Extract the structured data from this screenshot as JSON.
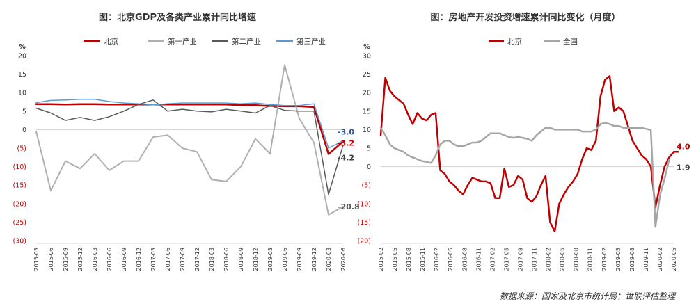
{
  "chart_data": [
    {
      "type": "line",
      "title": "图：北京GDP及各类产业累计同比增速",
      "ylabel": "%",
      "ylim": [
        -30,
        20
      ],
      "yticks": [
        20,
        15,
        10,
        5,
        0,
        -5,
        -10,
        -15,
        -20,
        -25,
        -30
      ],
      "ytick_labels": [
        "20",
        "15",
        "10",
        "5",
        "0",
        "(5)",
        "(10)",
        "(15)",
        "(20)",
        "(25)",
        "(30)"
      ],
      "x_start": "2015-03",
      "x_end": "2020-06",
      "xtick_labels": [
        "2015-03",
        "2015-06",
        "2015-09",
        "2015-12",
        "2016-03",
        "2016-06",
        "2016-09",
        "2016-12",
        "2017-03",
        "2017-06",
        "2017-09",
        "2017-12",
        "2018-03",
        "2018-06",
        "2018-09",
        "2018-12",
        "2019-03",
        "2019-06",
        "2019-09",
        "2019-12",
        "2020-03",
        "2020-06"
      ],
      "legend_position": "top",
      "series": [
        {
          "name": "北京",
          "color": "#c00000",
          "width": 2.5,
          "points": [
            [
              0,
              6.9
            ],
            [
              3,
              6.9
            ],
            [
              6,
              6.8
            ],
            [
              9,
              6.9
            ],
            [
              12,
              6.9
            ],
            [
              15,
              6.8
            ],
            [
              18,
              6.8
            ],
            [
              21,
              6.8
            ],
            [
              24,
              6.8
            ],
            [
              27,
              6.8
            ],
            [
              30,
              6.8
            ],
            [
              33,
              6.8
            ],
            [
              36,
              6.8
            ],
            [
              39,
              6.8
            ],
            [
              42,
              6.6
            ],
            [
              45,
              6.6
            ],
            [
              48,
              6.4
            ],
            [
              51,
              6.3
            ],
            [
              54,
              6.3
            ],
            [
              57,
              6.1
            ],
            [
              60,
              -6.6
            ],
            [
              63,
              -3.2
            ]
          ]
        },
        {
          "name": "第一产业",
          "color": "#b0b0b0",
          "width": 2,
          "points": [
            [
              0,
              -0.5
            ],
            [
              3,
              -16.5
            ],
            [
              6,
              -8.5
            ],
            [
              9,
              -10.5
            ],
            [
              12,
              -6.5
            ],
            [
              15,
              -11
            ],
            [
              18,
              -8.5
            ],
            [
              21,
              -8.5
            ],
            [
              24,
              -2
            ],
            [
              27,
              -1.5
            ],
            [
              30,
              -5
            ],
            [
              33,
              -6
            ],
            [
              36,
              -13.5
            ],
            [
              39,
              -14
            ],
            [
              42,
              -10
            ],
            [
              45,
              -2.5
            ],
            [
              48,
              -6.5
            ],
            [
              51,
              17.5
            ],
            [
              54,
              3
            ],
            [
              57,
              -3.5
            ],
            [
              60,
              -23
            ],
            [
              63,
              -20.8
            ]
          ]
        },
        {
          "name": "第二产业",
          "color": "#595959",
          "width": 1.5,
          "points": [
            [
              0,
              5.8
            ],
            [
              3,
              4.5
            ],
            [
              6,
              2.5
            ],
            [
              9,
              3.3
            ],
            [
              12,
              2.5
            ],
            [
              15,
              3.5
            ],
            [
              18,
              5
            ],
            [
              21,
              6.8
            ],
            [
              24,
              8
            ],
            [
              27,
              5
            ],
            [
              30,
              5.5
            ],
            [
              33,
              5
            ],
            [
              36,
              4.8
            ],
            [
              39,
              5.5
            ],
            [
              42,
              5
            ],
            [
              45,
              4.5
            ],
            [
              48,
              6.5
            ],
            [
              51,
              5.2
            ],
            [
              54,
              5
            ],
            [
              57,
              5
            ],
            [
              60,
              -17.5
            ],
            [
              63,
              -4.2
            ]
          ]
        },
        {
          "name": "第三产业",
          "color": "#5b9bd5",
          "width": 1.5,
          "points": [
            [
              0,
              7.3
            ],
            [
              3,
              7.9
            ],
            [
              6,
              8
            ],
            [
              9,
              8.2
            ],
            [
              12,
              8.2
            ],
            [
              15,
              7.6
            ],
            [
              18,
              7.2
            ],
            [
              21,
              7
            ],
            [
              24,
              6.7
            ],
            [
              27,
              7
            ],
            [
              30,
              7.2
            ],
            [
              33,
              7.2
            ],
            [
              36,
              7.2
            ],
            [
              39,
              7.2
            ],
            [
              42,
              7
            ],
            [
              45,
              7.2
            ],
            [
              48,
              6.8
            ],
            [
              51,
              6.5
            ],
            [
              54,
              6.5
            ],
            [
              57,
              7
            ],
            [
              60,
              -5
            ],
            [
              63,
              -3
            ]
          ]
        }
      ],
      "annotations": [
        {
          "text": "-3.0",
          "x": 63,
          "y": -3.0,
          "color": "#2f5597"
        },
        {
          "text": "-3.2",
          "x": 63,
          "y": -3.2,
          "color": "#c00000"
        },
        {
          "text": "-4.2",
          "x": 63,
          "y": -4.2,
          "color": "#404040"
        },
        {
          "text": "-20.8",
          "x": 63,
          "y": -20.8,
          "color": "#595959"
        }
      ]
    },
    {
      "type": "line",
      "title": "图：房地产开发投资增速累计同比变化（月度）",
      "ylabel": "%",
      "ylim": [
        -20,
        30
      ],
      "yticks": [
        30,
        25,
        20,
        15,
        10,
        5,
        0,
        -5,
        -10,
        -15,
        -20
      ],
      "ytick_labels": [
        "30",
        "25",
        "20",
        "15",
        "10",
        "5",
        "0",
        "(5)",
        "(10)",
        "(15)",
        "(20)"
      ],
      "x_start": "2015-02",
      "x_end": "2020-06",
      "xtick_labels": [
        "2015-02",
        "2015-05",
        "2015-08",
        "2015-11",
        "2016-02",
        "2016-05",
        "2016-08",
        "2016-11",
        "2017-02",
        "2017-05",
        "2017-08",
        "2017-11",
        "2018-02",
        "2018-05",
        "2018-08",
        "2018-11",
        "2019-02",
        "2019-05",
        "2019-08",
        "2019-11",
        "2020-02",
        "2020-05"
      ],
      "legend_position": "top",
      "series": [
        {
          "name": "北京",
          "color": "#c00000",
          "width": 2.5,
          "points": [
            [
              0,
              8.5
            ],
            [
              1,
              24
            ],
            [
              2,
              20.5
            ],
            [
              3,
              19
            ],
            [
              4,
              18
            ],
            [
              5,
              17
            ],
            [
              6,
              14
            ],
            [
              7,
              11.5
            ],
            [
              8,
              14.5
            ],
            [
              9,
              13
            ],
            [
              10,
              12.5
            ],
            [
              11,
              14
            ],
            [
              12,
              14.5
            ],
            [
              13,
              -1
            ],
            [
              14,
              -2
            ],
            [
              15,
              -4
            ],
            [
              16,
              -5
            ],
            [
              17,
              -6.5
            ],
            [
              18,
              -7.5
            ],
            [
              19,
              -5
            ],
            [
              20,
              -3
            ],
            [
              21,
              -3.5
            ],
            [
              22,
              -4
            ],
            [
              23,
              -4
            ],
            [
              24,
              -4.5
            ],
            [
              25,
              -8.5
            ],
            [
              26,
              -8.5
            ],
            [
              27,
              -0.5
            ],
            [
              28,
              -5.5
            ],
            [
              29,
              -5
            ],
            [
              30,
              -2.5
            ],
            [
              31,
              -3.5
            ],
            [
              32,
              -8.5
            ],
            [
              33,
              -9.5
            ],
            [
              34,
              -8
            ],
            [
              35,
              -5
            ],
            [
              36,
              -2.5
            ],
            [
              37,
              -15
            ],
            [
              38,
              -17.5
            ],
            [
              39,
              -10
            ],
            [
              40,
              -7.5
            ],
            [
              41,
              -5.5
            ],
            [
              42,
              -4
            ],
            [
              43,
              -2
            ],
            [
              44,
              2
            ],
            [
              45,
              5
            ],
            [
              46,
              4.5
            ],
            [
              47,
              7
            ],
            [
              48,
              19
            ],
            [
              49,
              23.5
            ],
            [
              50,
              24.5
            ],
            [
              51,
              15
            ],
            [
              52,
              16
            ],
            [
              53,
              15
            ],
            [
              54,
              11
            ],
            [
              55,
              7
            ],
            [
              56,
              5
            ],
            [
              57,
              3
            ],
            [
              58,
              2
            ],
            [
              59,
              0
            ],
            [
              60,
              -11
            ],
            [
              61,
              -5
            ],
            [
              62,
              0
            ],
            [
              63,
              2.5
            ],
            [
              64,
              4
            ],
            [
              65,
              4
            ]
          ]
        },
        {
          "name": "全国",
          "color": "#a6a6a6",
          "width": 2.5,
          "points": [
            [
              0,
              10.5
            ],
            [
              1,
              8.5
            ],
            [
              2,
              6
            ],
            [
              3,
              5
            ],
            [
              4,
              4.5
            ],
            [
              5,
              4
            ],
            [
              6,
              3
            ],
            [
              7,
              2.5
            ],
            [
              8,
              2
            ],
            [
              9,
              1.5
            ],
            [
              10,
              1.3
            ],
            [
              11,
              1
            ],
            [
              12,
              3
            ],
            [
              13,
              6
            ],
            [
              14,
              7
            ],
            [
              15,
              7
            ],
            [
              16,
              6
            ],
            [
              17,
              5.5
            ],
            [
              18,
              5.5
            ],
            [
              19,
              6
            ],
            [
              20,
              6.5
            ],
            [
              21,
              6.5
            ],
            [
              22,
              7
            ],
            [
              23,
              8
            ],
            [
              24,
              9
            ],
            [
              25,
              9
            ],
            [
              26,
              9
            ],
            [
              27,
              8.5
            ],
            [
              28,
              8
            ],
            [
              29,
              7.8
            ],
            [
              30,
              8
            ],
            [
              31,
              7.8
            ],
            [
              32,
              7.5
            ],
            [
              33,
              7
            ],
            [
              34,
              8.5
            ],
            [
              35,
              9.5
            ],
            [
              36,
              10.5
            ],
            [
              37,
              10.5
            ],
            [
              38,
              10
            ],
            [
              39,
              10
            ],
            [
              40,
              10
            ],
            [
              41,
              10
            ],
            [
              42,
              10
            ],
            [
              43,
              10
            ],
            [
              44,
              9.5
            ],
            [
              45,
              9.5
            ],
            [
              46,
              9.5
            ],
            [
              47,
              10
            ],
            [
              48,
              11.5
            ],
            [
              49,
              11.8
            ],
            [
              50,
              11.5
            ],
            [
              51,
              11
            ],
            [
              52,
              11
            ],
            [
              53,
              10.5
            ],
            [
              54,
              10.5
            ],
            [
              55,
              10.5
            ],
            [
              56,
              10.5
            ],
            [
              57,
              10.5
            ],
            [
              58,
              10.2
            ],
            [
              59,
              9.9
            ],
            [
              60,
              -16.3
            ],
            [
              61,
              -7.7
            ],
            [
              62,
              -3.3
            ],
            [
              63,
              1.9
            ]
          ]
        }
      ],
      "annotations": [
        {
          "text": "4.0",
          "x": 65,
          "y": 4.0,
          "color": "#c00000"
        },
        {
          "text": "1.9",
          "x": 65,
          "y": 1.9,
          "color": "#404040"
        }
      ]
    }
  ],
  "source_text": "数据来源：国家及北京市统计局；世联评估整理"
}
